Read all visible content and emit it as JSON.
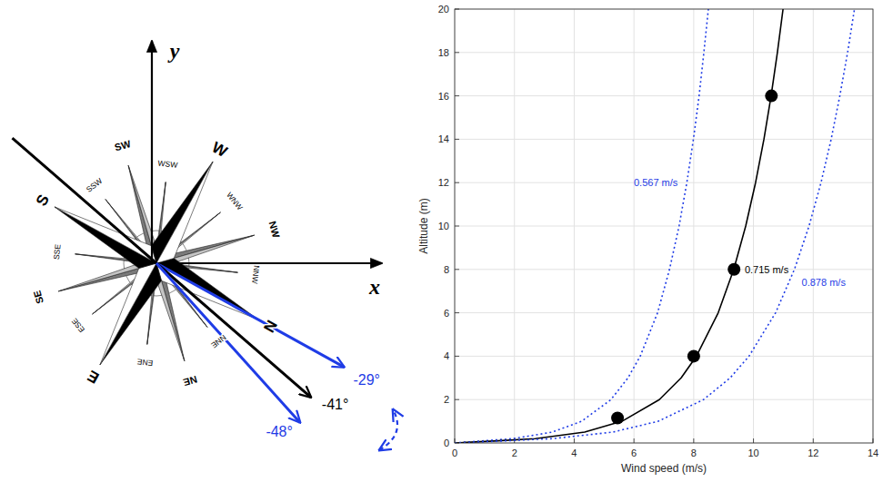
{
  "diagram": {
    "axis_labels": [
      "x",
      "y"
    ],
    "rose_points": [
      "N",
      "NNE",
      "NE",
      "ENE",
      "E",
      "ESE",
      "SE",
      "SSE",
      "S",
      "SSW",
      "SW",
      "WSW",
      "W",
      "WNW",
      "NW",
      "NNW"
    ],
    "directions": [
      {
        "label": "-29°",
        "angle": -29,
        "color": "#1f3ce6"
      },
      {
        "label": "-41°",
        "angle": -41,
        "color": "#000000"
      },
      {
        "label": "-48°",
        "angle": -48,
        "color": "#1f3ce6"
      }
    ]
  },
  "chart_data": {
    "type": "line",
    "xlabel": "Wind speed (m/s)",
    "ylabel": "Altitude (m)",
    "xlim": [
      0,
      14
    ],
    "ylim": [
      0,
      20
    ],
    "xticks": [
      0,
      2,
      4,
      6,
      8,
      10,
      12,
      14
    ],
    "yticks": [
      0,
      2,
      4,
      6,
      8,
      10,
      12,
      14,
      16,
      18,
      20
    ],
    "grid": true,
    "series": [
      {
        "name": "0.567 m/s",
        "color": "#1f3ce6",
        "line_style": "dotted",
        "x": [
          0,
          0.98,
          1.96,
          3.26,
          4.25,
          5.23,
          5.8,
          6.21,
          6.79,
          7.19,
          7.51,
          7.77,
          7.99,
          8.18,
          8.34,
          8.49
        ],
        "values": [
          0,
          0.1,
          0.2,
          0.5,
          1,
          2,
          3,
          4,
          6,
          8,
          10,
          12,
          14,
          16,
          18,
          20
        ]
      },
      {
        "name": "0.715 m/s",
        "color": "#000000",
        "line_style": "solid",
        "x": [
          0,
          1.45,
          2.7,
          4.35,
          5.6,
          6.85,
          7.58,
          8.09,
          8.82,
          9.34,
          9.74,
          10.07,
          10.35,
          10.59,
          10.8,
          10.99
        ],
        "values": [
          0,
          0.1,
          0.2,
          0.5,
          1,
          2,
          3,
          4,
          6,
          8,
          10,
          12,
          14,
          16,
          18,
          20
        ]
      },
      {
        "name": "0.878 m/s",
        "color": "#1f3ce6",
        "line_style": "dotted",
        "x": [
          0,
          1.75,
          3.27,
          5.29,
          6.81,
          8.33,
          9.22,
          9.85,
          10.74,
          11.37,
          11.86,
          12.26,
          12.6,
          12.89,
          13.15,
          13.38
        ],
        "values": [
          0,
          0.1,
          0.2,
          0.5,
          1,
          2,
          3,
          4,
          6,
          8,
          10,
          12,
          14,
          16,
          18,
          20
        ]
      },
      {
        "type": "scatter",
        "color": "#000000",
        "marker": "circle",
        "x": [
          5.45,
          8.0,
          9.35,
          10.6
        ],
        "values": [
          1.15,
          4,
          8,
          16
        ]
      }
    ]
  }
}
